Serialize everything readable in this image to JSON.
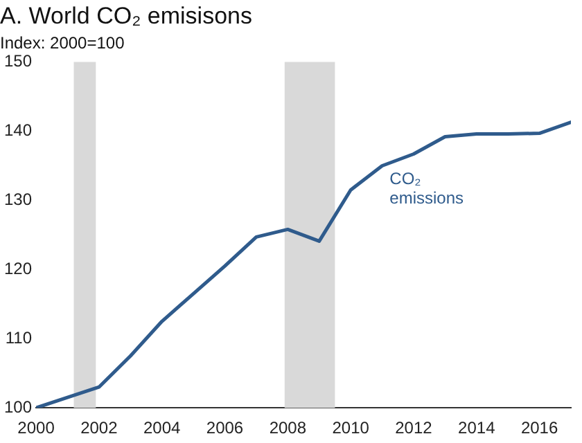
{
  "chart_data": {
    "type": "line",
    "title": "A. World CO₂ emisisons",
    "subtitle": "Index: 2000=100",
    "x": [
      2000,
      2001,
      2002,
      2003,
      2004,
      2005,
      2006,
      2007,
      2008,
      2009,
      2010,
      2011,
      2012,
      2013,
      2014,
      2015,
      2016,
      2017
    ],
    "series": [
      {
        "name": "CO₂ emissions",
        "color": "#2f5b8c",
        "values": [
          100,
          101.5,
          103,
          107.5,
          112.5,
          116.5,
          120.5,
          124.7,
          125.8,
          124.1,
          131.5,
          135,
          136.7,
          139.2,
          139.6,
          139.6,
          139.7,
          141.3
        ]
      }
    ],
    "xlim": [
      2000,
      2017
    ],
    "xticks": [
      2000,
      2002,
      2004,
      2006,
      2008,
      2010,
      2012,
      2014,
      2016
    ],
    "ylim": [
      100,
      150
    ],
    "yticks": [
      100,
      110,
      120,
      130,
      140,
      150
    ],
    "bands": [
      {
        "axis": "x",
        "from": 2001.2,
        "to": 2001.9,
        "color": "#d9d9d9"
      },
      {
        "axis": "x",
        "from": 2007.9,
        "to": 2009.5,
        "color": "#d9d9d9"
      }
    ],
    "grid": false,
    "legend": false,
    "marker": "none",
    "line_style": "solid"
  }
}
